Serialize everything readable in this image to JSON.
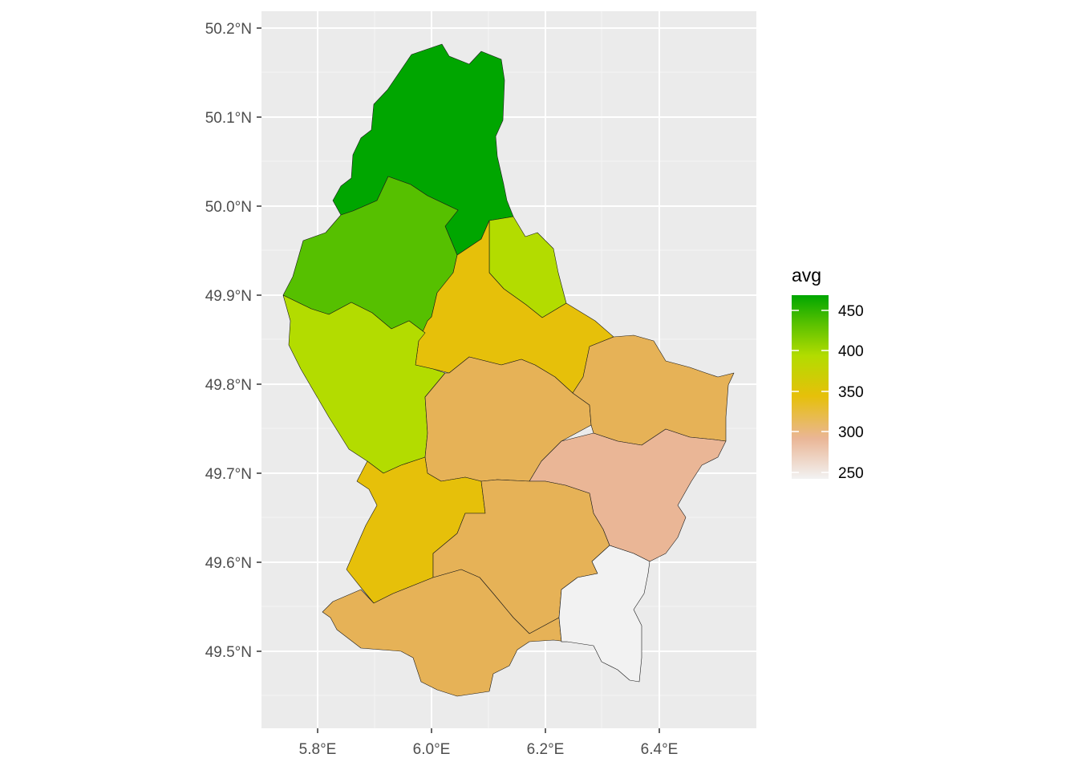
{
  "chart_data": {
    "type": "choropleth",
    "fill_variable": "avg",
    "legend": {
      "title": "avg",
      "placement": "right",
      "range": [
        245,
        470
      ],
      "breaks": [
        250,
        300,
        350,
        400,
        450
      ],
      "colors": [
        "#f2f2f2",
        "#eab696",
        "#e6c00a",
        "#b3dc00",
        "#56c000",
        "#00a600"
      ]
    },
    "x_axis": {
      "ticks": [
        "5.8°E",
        "6.0°E",
        "6.2°E",
        "6.4°E"
      ]
    },
    "y_axis": {
      "ticks": [
        "49.5°N",
        "49.6°N",
        "49.7°N",
        "49.8°N",
        "49.9°N",
        "50.0°N",
        "50.1°N",
        "50.2°N"
      ]
    },
    "grid": true,
    "panel_background": "#ebebeb",
    "regions_count": 12,
    "region_values": [
      460,
      410,
      390,
      385,
      330,
      320,
      315,
      320,
      330,
      320,
      280,
      245
    ]
  }
}
